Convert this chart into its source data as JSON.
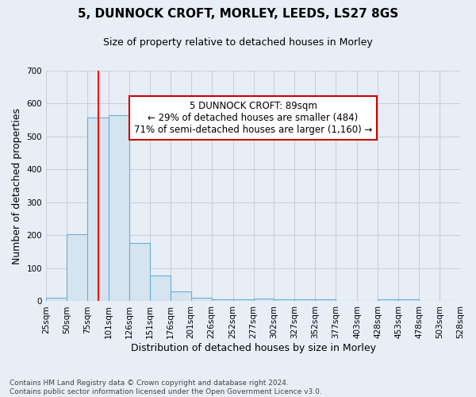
{
  "title": "5, DUNNOCK CROFT, MORLEY, LEEDS, LS27 8GS",
  "subtitle": "Size of property relative to detached houses in Morley",
  "xlabel": "Distribution of detached houses by size in Morley",
  "ylabel": "Number of detached properties",
  "bin_edges": [
    25,
    50,
    75,
    101,
    126,
    151,
    176,
    201,
    226,
    252,
    277,
    302,
    327,
    352,
    377,
    403,
    428,
    453,
    478,
    503,
    528
  ],
  "counts": [
    10,
    204,
    557,
    565,
    178,
    79,
    29,
    11,
    6,
    6,
    8,
    6,
    6,
    5,
    0,
    0,
    5,
    6,
    0,
    0
  ],
  "bar_fill_color": "#d6e4f0",
  "bar_edge_color": "#6aaed6",
  "red_line_x": 89,
  "ylim": [
    0,
    700
  ],
  "yticks": [
    0,
    100,
    200,
    300,
    400,
    500,
    600,
    700
  ],
  "tick_labels": [
    "25sqm",
    "50sqm",
    "75sqm",
    "101sqm",
    "126sqm",
    "151sqm",
    "176sqm",
    "201sqm",
    "226sqm",
    "252sqm",
    "277sqm",
    "302sqm",
    "327sqm",
    "352sqm",
    "377sqm",
    "403sqm",
    "428sqm",
    "453sqm",
    "478sqm",
    "503sqm",
    "528sqm"
  ],
  "annotation_text": "5 DUNNOCK CROFT: 89sqm\n← 29% of detached houses are smaller (484)\n71% of semi-detached houses are larger (1,160) →",
  "annotation_box_facecolor": "#ffffff",
  "annotation_box_edgecolor": "#cc0000",
  "footer_line1": "Contains HM Land Registry data © Crown copyright and database right 2024.",
  "footer_line2": "Contains public sector information licensed under the Open Government Licence v3.0.",
  "fig_facecolor": "#e8eef6",
  "grid_color": "#c8d0dc",
  "title_fontsize": 11,
  "subtitle_fontsize": 9,
  "ylabel_fontsize": 9,
  "xlabel_fontsize": 9,
  "tick_fontsize": 7.5,
  "footer_fontsize": 6.5,
  "annotation_fontsize": 8.5
}
